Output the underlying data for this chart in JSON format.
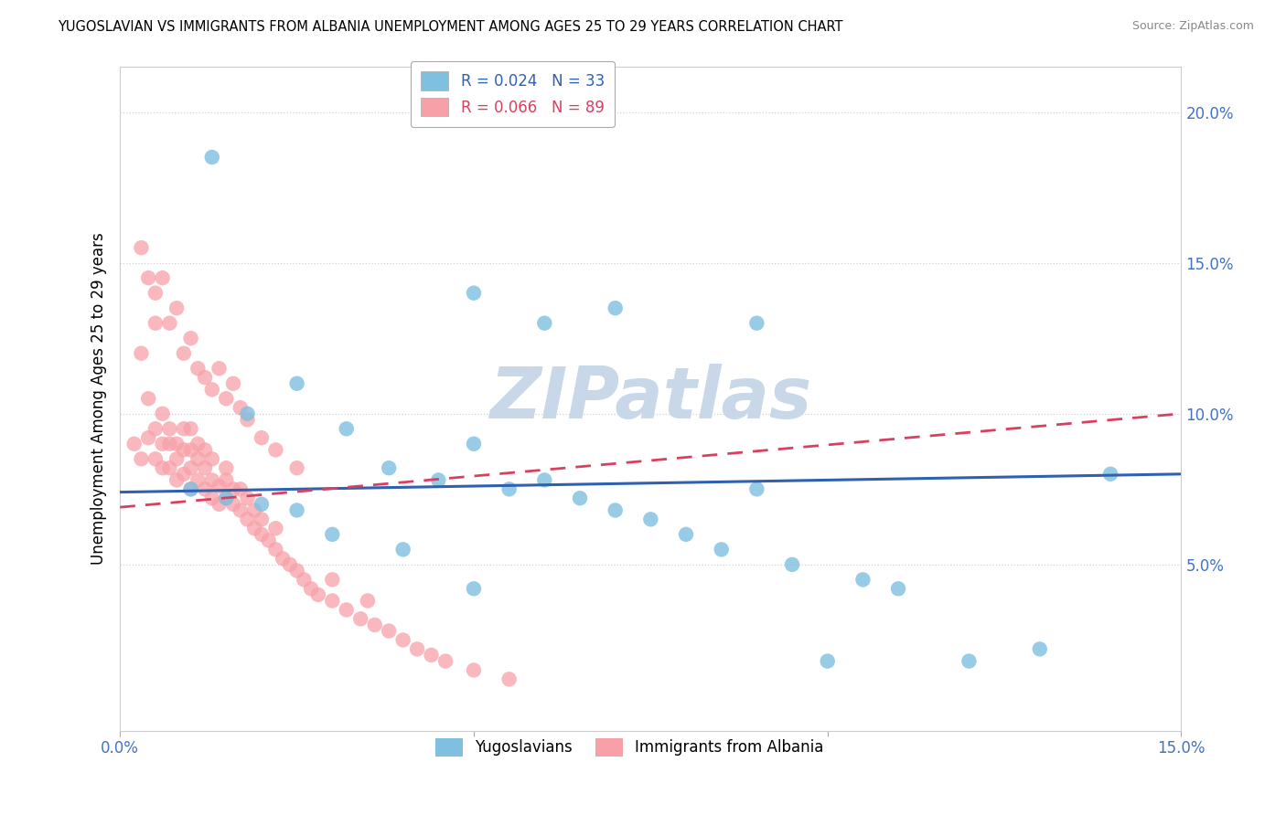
{
  "title": "YUGOSLAVIAN VS IMMIGRANTS FROM ALBANIA UNEMPLOYMENT AMONG AGES 25 TO 29 YEARS CORRELATION CHART",
  "source": "Source: ZipAtlas.com",
  "xlim": [
    0.0,
    0.15
  ],
  "ylim": [
    -0.005,
    0.215
  ],
  "legend1_label": "R = 0.024   N = 33",
  "legend2_label": "R = 0.066   N = 89",
  "series1_color": "#7fbfdf",
  "series2_color": "#f8a0a8",
  "trendline1_color": "#3060b0",
  "trendline2_color": "#d84060",
  "watermark": "ZIPatlas",
  "watermark_color": "#c8d8e8",
  "yugoslavians_x": [
    0.013,
    0.018,
    0.025,
    0.032,
    0.038,
    0.045,
    0.05,
    0.055,
    0.06,
    0.065,
    0.07,
    0.075,
    0.08,
    0.085,
    0.09,
    0.095,
    0.1,
    0.105,
    0.11,
    0.12,
    0.13,
    0.14,
    0.05,
    0.06,
    0.07,
    0.01,
    0.015,
    0.02,
    0.025,
    0.03,
    0.04,
    0.05,
    0.09
  ],
  "yugoslavians_y": [
    0.185,
    0.1,
    0.11,
    0.095,
    0.082,
    0.078,
    0.09,
    0.075,
    0.078,
    0.072,
    0.068,
    0.065,
    0.06,
    0.055,
    0.075,
    0.05,
    0.018,
    0.045,
    0.042,
    0.018,
    0.022,
    0.08,
    0.14,
    0.13,
    0.135,
    0.075,
    0.072,
    0.07,
    0.068,
    0.06,
    0.055,
    0.042,
    0.13
  ],
  "albania_x": [
    0.002,
    0.003,
    0.003,
    0.004,
    0.004,
    0.005,
    0.005,
    0.005,
    0.006,
    0.006,
    0.006,
    0.007,
    0.007,
    0.007,
    0.008,
    0.008,
    0.008,
    0.009,
    0.009,
    0.009,
    0.01,
    0.01,
    0.01,
    0.01,
    0.011,
    0.011,
    0.011,
    0.012,
    0.012,
    0.012,
    0.013,
    0.013,
    0.013,
    0.014,
    0.014,
    0.015,
    0.015,
    0.015,
    0.016,
    0.016,
    0.017,
    0.017,
    0.018,
    0.018,
    0.019,
    0.019,
    0.02,
    0.02,
    0.021,
    0.022,
    0.022,
    0.023,
    0.024,
    0.025,
    0.026,
    0.027,
    0.028,
    0.03,
    0.03,
    0.032,
    0.034,
    0.035,
    0.036,
    0.038,
    0.04,
    0.042,
    0.044,
    0.046,
    0.05,
    0.055,
    0.003,
    0.004,
    0.005,
    0.006,
    0.007,
    0.008,
    0.009,
    0.01,
    0.011,
    0.012,
    0.013,
    0.014,
    0.015,
    0.016,
    0.017,
    0.018,
    0.02,
    0.022,
    0.025
  ],
  "albania_y": [
    0.09,
    0.085,
    0.12,
    0.092,
    0.105,
    0.085,
    0.095,
    0.13,
    0.082,
    0.09,
    0.1,
    0.082,
    0.09,
    0.095,
    0.078,
    0.085,
    0.09,
    0.08,
    0.088,
    0.095,
    0.075,
    0.082,
    0.088,
    0.095,
    0.078,
    0.085,
    0.09,
    0.075,
    0.082,
    0.088,
    0.072,
    0.078,
    0.085,
    0.07,
    0.076,
    0.072,
    0.078,
    0.082,
    0.07,
    0.075,
    0.068,
    0.075,
    0.065,
    0.072,
    0.062,
    0.068,
    0.06,
    0.065,
    0.058,
    0.055,
    0.062,
    0.052,
    0.05,
    0.048,
    0.045,
    0.042,
    0.04,
    0.038,
    0.045,
    0.035,
    0.032,
    0.038,
    0.03,
    0.028,
    0.025,
    0.022,
    0.02,
    0.018,
    0.015,
    0.012,
    0.155,
    0.145,
    0.14,
    0.145,
    0.13,
    0.135,
    0.12,
    0.125,
    0.115,
    0.112,
    0.108,
    0.115,
    0.105,
    0.11,
    0.102,
    0.098,
    0.092,
    0.088,
    0.082
  ],
  "trendline1_x": [
    0.0,
    0.15
  ],
  "trendline1_y": [
    0.074,
    0.08
  ],
  "trendline2_x": [
    0.0,
    0.15
  ],
  "trendline2_y": [
    0.069,
    0.1
  ]
}
